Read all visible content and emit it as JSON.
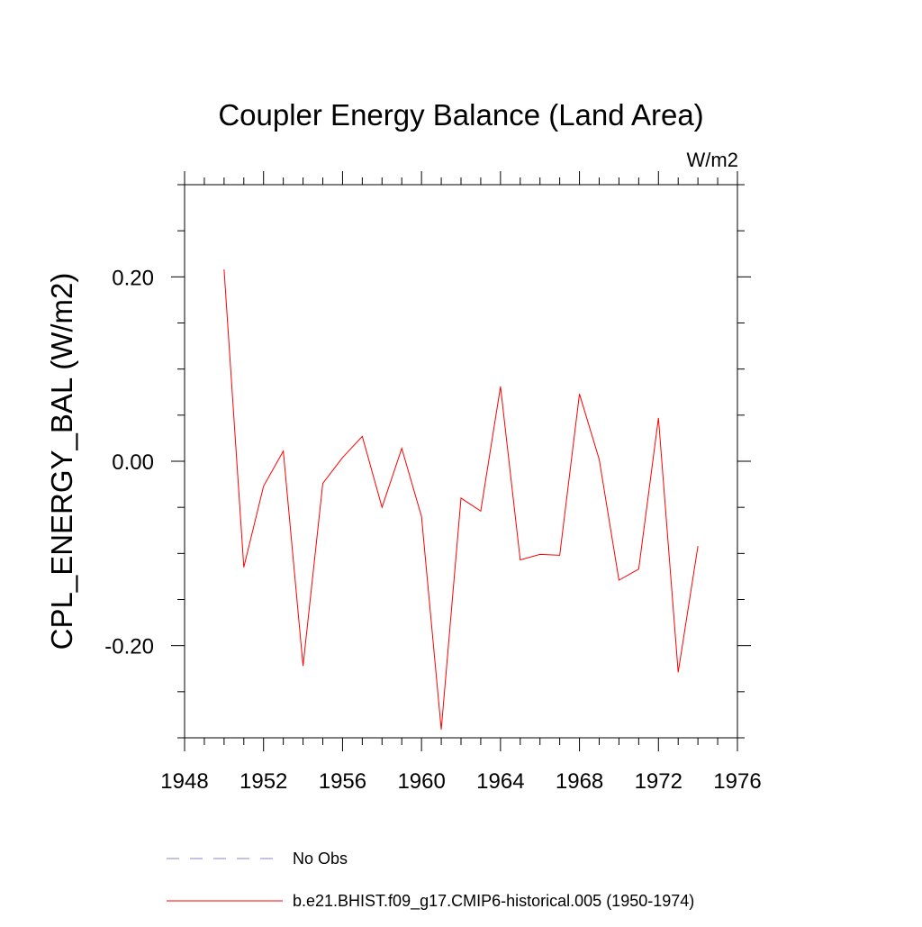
{
  "chart_data": {
    "type": "line",
    "title": "Coupler Energy Balance (Land Area)",
    "units_label": "W/m2",
    "xlabel": "",
    "ylabel": "CPL_ENERGY_BAL  (W/m2)",
    "xlim": [
      1948,
      1976
    ],
    "ylim": [
      -0.3,
      0.3
    ],
    "x_ticks": [
      1948,
      1952,
      1956,
      1960,
      1964,
      1968,
      1972,
      1976
    ],
    "x_tick_labels": [
      "1948",
      "1952",
      "1956",
      "1960",
      "1964",
      "1968",
      "1972",
      "1976"
    ],
    "x_minor_step": 1,
    "y_ticks": [
      -0.2,
      0.0,
      0.2
    ],
    "y_tick_labels": [
      "-0.20",
      "0.00",
      "0.20"
    ],
    "y_minor_step": 0.05,
    "grid": false,
    "legend_position": "bottom",
    "series": [
      {
        "name": "No Obs",
        "style": "dashed",
        "color": "#8a86c6",
        "x": [],
        "values": []
      },
      {
        "name": "b.e21.BHIST.f09_g17.CMIP6-historical.005 (1950-1974)",
        "style": "solid",
        "color": "#ff0000",
        "x": [
          1950,
          1951,
          1952,
          1953,
          1954,
          1955,
          1956,
          1957,
          1958,
          1959,
          1960,
          1961,
          1962,
          1963,
          1964,
          1965,
          1966,
          1967,
          1968,
          1969,
          1970,
          1971,
          1972,
          1973,
          1974
        ],
        "values": [
          0.208,
          -0.115,
          -0.027,
          0.011,
          -0.222,
          -0.024,
          0.004,
          0.027,
          -0.05,
          0.014,
          -0.06,
          -0.291,
          -0.04,
          -0.054,
          0.081,
          -0.107,
          -0.101,
          -0.102,
          0.073,
          0.002,
          -0.129,
          -0.117,
          0.047,
          -0.229,
          -0.092
        ]
      }
    ]
  }
}
